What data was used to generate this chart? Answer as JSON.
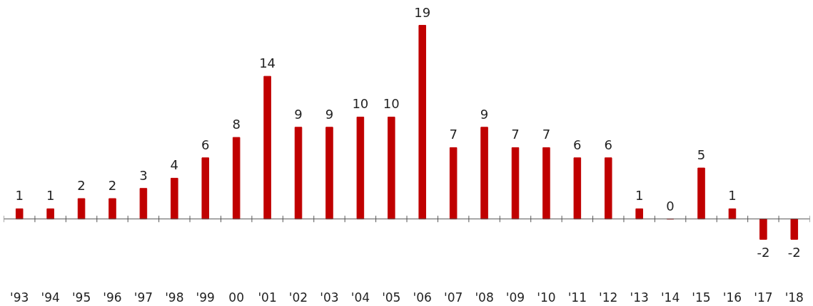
{
  "chart_data": {
    "type": "bar",
    "categories": [
      "'93",
      "'94",
      "'95",
      "'96",
      "'97",
      "'98",
      "'99",
      "00",
      "'01",
      "'02",
      "'03",
      "'04",
      "'05",
      "'06",
      "'07",
      "'08",
      "'09",
      "'10",
      "'11",
      "'12",
      "'13",
      "'14",
      "'15",
      "'16",
      "'17",
      "'18"
    ],
    "values": [
      1,
      1,
      2,
      2,
      3,
      4,
      6,
      8,
      14,
      9,
      9,
      10,
      10,
      19,
      7,
      9,
      7,
      7,
      6,
      6,
      1,
      0,
      5,
      1,
      -2,
      -2
    ],
    "color": "#c00000",
    "data_labels": true,
    "grid": false
  }
}
